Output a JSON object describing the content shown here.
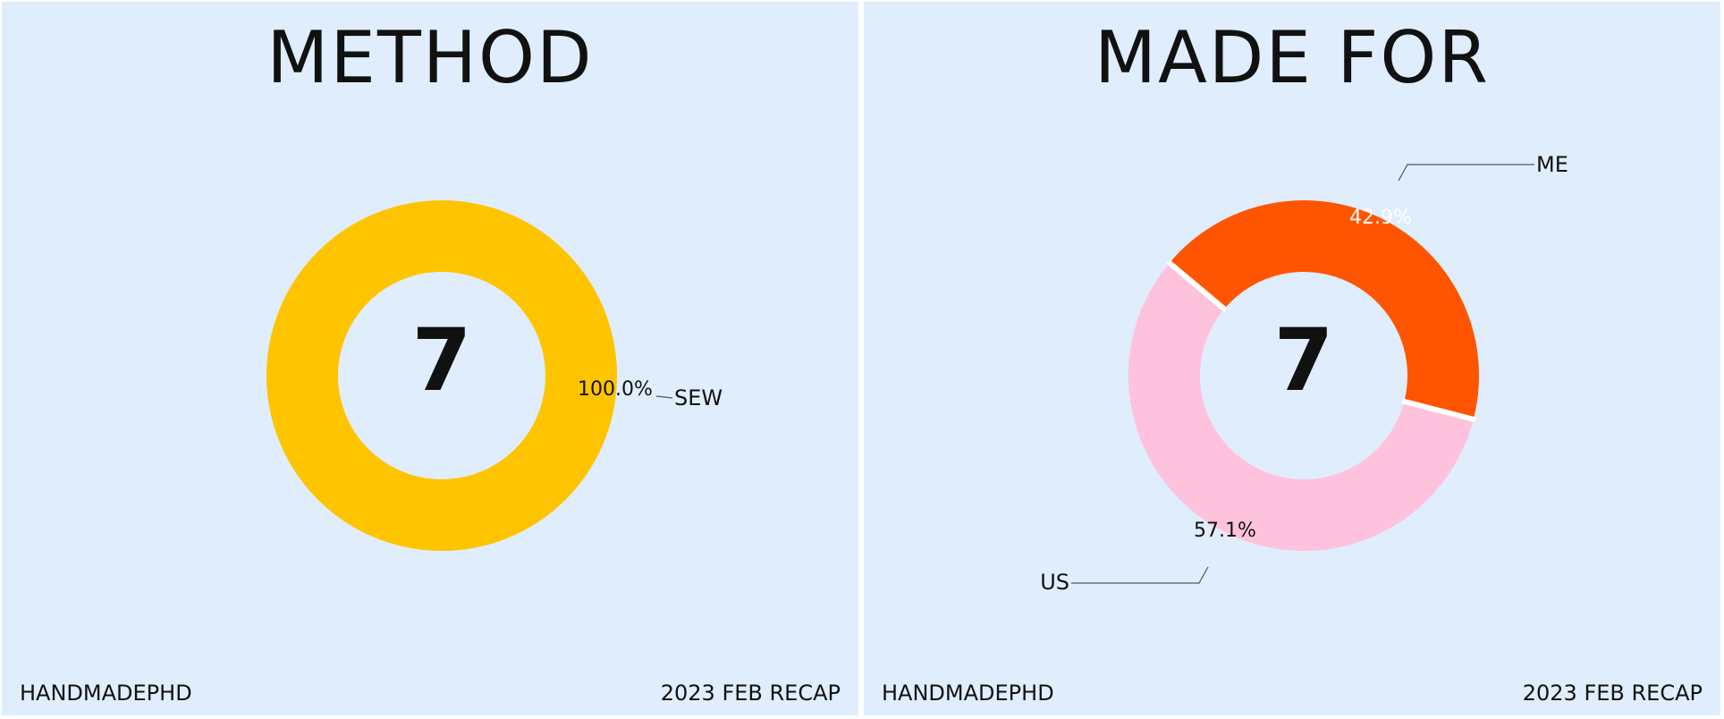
{
  "colors": {
    "background": "#e0edfc",
    "sew": "#ffc400",
    "me": "#ff5500",
    "us": "#ffc2dc"
  },
  "chart_data": [
    {
      "type": "pie",
      "title": "METHOD",
      "center_total": "7",
      "slices": [
        {
          "label": "SEW",
          "value": 100.0,
          "pct_label": "100.0%",
          "color": "#ffc400"
        }
      ],
      "footer_left": "HANDMADEPHD",
      "footer_right": "2023 FEB RECAP"
    },
    {
      "type": "pie",
      "title": "MADE FOR",
      "center_total": "7",
      "slices": [
        {
          "label": "ME",
          "value": 42.9,
          "pct_label": "42.9%",
          "color": "#ff5500"
        },
        {
          "label": "US",
          "value": 57.1,
          "pct_label": "57.1%",
          "color": "#ffc2dc"
        }
      ],
      "footer_left": "HANDMADEPHD",
      "footer_right": "2023 FEB RECAP"
    }
  ]
}
